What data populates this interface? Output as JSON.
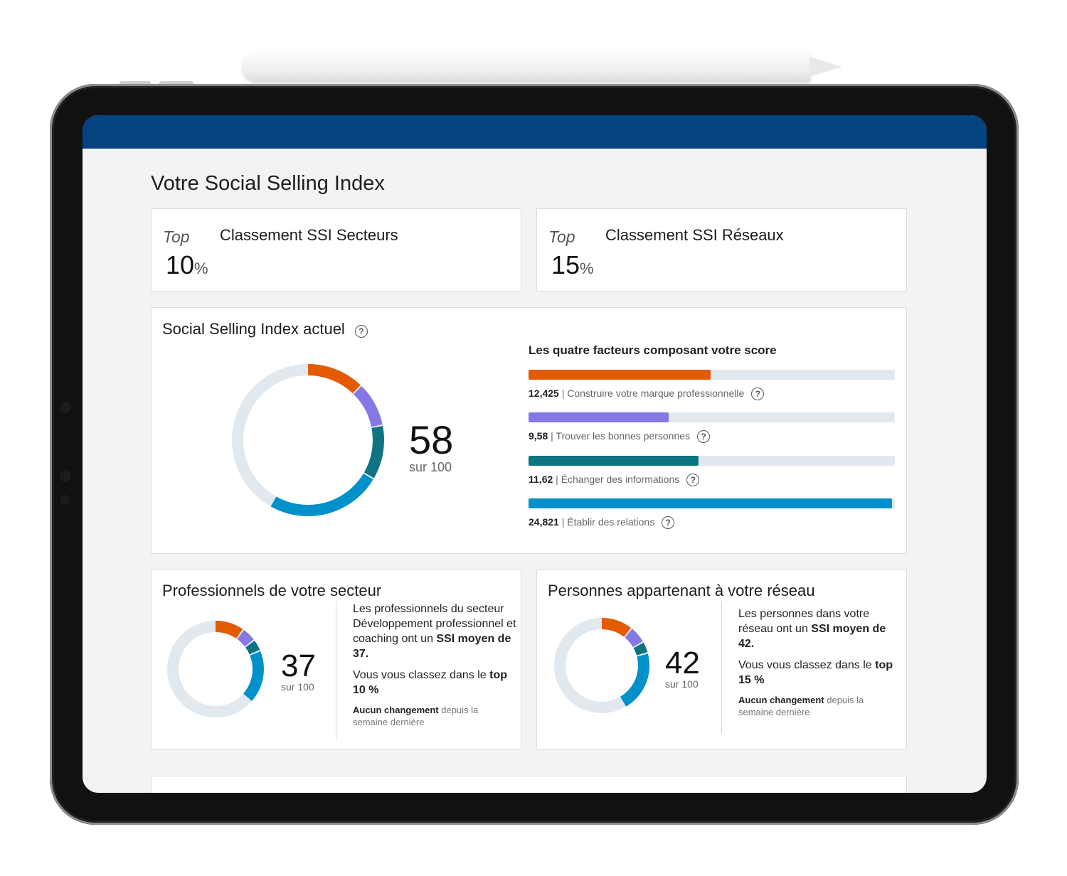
{
  "page": {
    "title": "Votre Social Selling Index"
  },
  "rank_cards": [
    {
      "top_label": "Top",
      "value": "10",
      "unit": "%",
      "title": "Classement SSI Secteurs"
    },
    {
      "top_label": "Top",
      "value": "15",
      "unit": "%",
      "title": "Classement SSI Réseaux"
    }
  ],
  "current": {
    "title": "Social Selling Index actuel",
    "help_icon": "question-circle-icon",
    "score": "58",
    "out_of": "sur 100",
    "factors_title": "Les quatre facteurs composant votre score"
  },
  "sector": {
    "title": "Professionnels de votre secteur",
    "score": "37",
    "out_of": "sur 100",
    "desc_1": "Les professionnels du secteur Développement professionnel et coaching ont un ",
    "desc_bold": "SSI moyen de 37.",
    "rank_text": "Vous vous classez dans le ",
    "rank_bold": "top 10 %",
    "change_bold": "Aucun changement",
    "change_text": " depuis la semaine dernière"
  },
  "network": {
    "title": "Personnes appartenant à votre réseau",
    "score": "42",
    "out_of": "sur 100",
    "desc_1": "Les personnes dans votre réseau ont un ",
    "desc_bold": "SSI moyen de 42.",
    "rank_text": "Vous vous classez dans le ",
    "rank_bold": "top 15 %",
    "change_bold": "Aucun changement",
    "change_text": " depuis la semaine dernière"
  },
  "colors": {
    "header": "#03437f",
    "brand": "#e35a00",
    "people": "#8478e4",
    "insights": "#0e7482",
    "relations": "#0091ca",
    "track": "#e1e8ee"
  },
  "chart_data": [
    {
      "type": "bar",
      "title": "Les quatre facteurs composant votre score",
      "categories": [
        "Construire votre marque professionnelle",
        "Trouver les bonnes personnes",
        "Échanger des informations",
        "Établir des relations"
      ],
      "values": [
        12.425,
        9.58,
        11.62,
        24.821
      ],
      "labels": [
        "12,425",
        "9,58",
        "11,62",
        "24,821"
      ],
      "max": 25
    },
    {
      "type": "pie",
      "title": "Social Selling Index actuel",
      "total": 100,
      "values": [
        12.425,
        9.58,
        11.62,
        24.821
      ]
    },
    {
      "type": "pie",
      "title": "Professionnels de votre secteur",
      "total": 100,
      "values": [
        10,
        5,
        4,
        18
      ]
    },
    {
      "type": "pie",
      "title": "Personnes appartenant à votre réseau",
      "total": 100,
      "values": [
        11,
        6,
        4,
        21
      ]
    }
  ]
}
